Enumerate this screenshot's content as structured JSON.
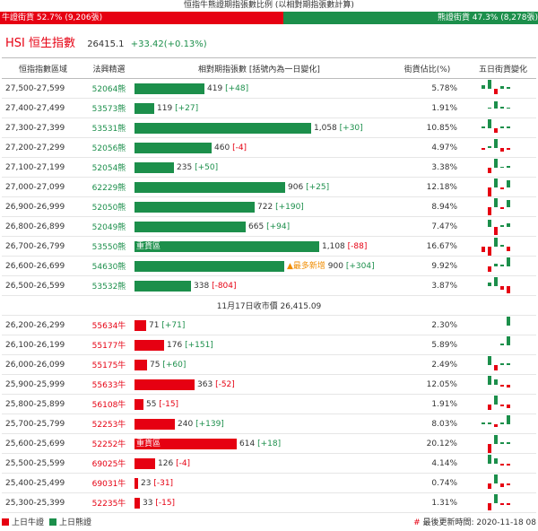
{
  "header": {
    "title": "恒指牛熊證期指張數比例 (以相對期指張數計算)",
    "bull_label": "牛證街貨 52.7% (9,206張)",
    "bull_pct": 52.7,
    "bear_label": "熊證街貨 47.3% (8,278張)",
    "bear_pct": 47.3
  },
  "index": {
    "symbol": "HSI 恒生指數",
    "value": "26415.1",
    "change": "+33.42(+0.13%)"
  },
  "columns": {
    "range": "恒指指數區域",
    "code": "法興精選",
    "bar": "相對期指張數 [括號內為一日變化]",
    "pct": "街貨佔比(%)",
    "spark": "五日街貨變化"
  },
  "bear_rows": [
    {
      "range": "27,500-27,599",
      "code": "52064熊",
      "count": 419,
      "count_text": "419",
      "change": "[+48]",
      "dir": "up",
      "tag": "",
      "note": "",
      "pct": "5.78%",
      "spark": [
        0,
        4,
        10,
        -6,
        3,
        2
      ]
    },
    {
      "range": "27,400-27,499",
      "code": "53573熊",
      "count": 119,
      "count_text": "119",
      "change": "[+27]",
      "dir": "up",
      "tag": "",
      "note": "",
      "pct": "1.91%",
      "spark": [
        0,
        0,
        1,
        8,
        2,
        1
      ]
    },
    {
      "range": "27,300-27,399",
      "code": "53531熊",
      "count": 1058,
      "count_text": "1,058",
      "change": "[+30]",
      "dir": "up",
      "tag": "",
      "note": "",
      "pct": "10.85%",
      "spark": [
        0,
        2,
        10,
        -5,
        2,
        2
      ]
    },
    {
      "range": "27,200-27,299",
      "code": "52056熊",
      "count": 460,
      "count_text": "460",
      "change": "[-4]",
      "dir": "dn",
      "tag": "",
      "note": "",
      "pct": "4.97%",
      "spark": [
        0,
        -2,
        2,
        10,
        -4,
        -2
      ]
    },
    {
      "range": "27,100-27,199",
      "code": "52054熊",
      "count": 235,
      "count_text": "235",
      "change": "[+50]",
      "dir": "up",
      "tag": "",
      "note": "",
      "pct": "3.38%",
      "spark": [
        0,
        0,
        -6,
        10,
        1,
        2
      ]
    },
    {
      "range": "27,000-27,099",
      "code": "62229熊",
      "count": 906,
      "count_text": "906",
      "change": "[+25]",
      "dir": "up",
      "tag": "",
      "note": "",
      "pct": "12.18%",
      "spark": [
        0,
        0,
        -10,
        10,
        -2,
        8
      ]
    },
    {
      "range": "26,900-26,999",
      "code": "52050熊",
      "count": 722,
      "count_text": "722",
      "change": "[+190]",
      "dir": "up",
      "tag": "",
      "note": "",
      "pct": "8.94%",
      "spark": [
        0,
        0,
        -9,
        10,
        -2,
        8
      ]
    },
    {
      "range": "26,800-26,899",
      "code": "52049熊",
      "count": 665,
      "count_text": "665",
      "change": "[+94]",
      "dir": "up",
      "tag": "",
      "note": "",
      "pct": "7.47%",
      "spark": [
        0,
        0,
        8,
        -9,
        2,
        4
      ]
    },
    {
      "range": "26,700-26,799",
      "code": "53550熊",
      "count": 1108,
      "count_text": "1,108",
      "change": "[-88]",
      "dir": "dn",
      "tag": "重貨區",
      "note": "",
      "pct": "16.67%",
      "spark": [
        0,
        -6,
        -10,
        10,
        2,
        -5
      ]
    },
    {
      "range": "26,600-26,699",
      "code": "54630熊",
      "count": 900,
      "count_text": "900",
      "change": "[+304]",
      "dir": "up",
      "tag": "",
      "note": "▲最多新增",
      "pct": "9.92%",
      "spark": [
        0,
        0,
        -6,
        3,
        2,
        10
      ]
    },
    {
      "range": "26,500-26,599",
      "code": "53532熊",
      "count": 338,
      "count_text": "338",
      "change": "[-804]",
      "dir": "dn",
      "tag": "",
      "note": "",
      "pct": "3.87%",
      "spark": [
        0,
        0,
        4,
        10,
        -4,
        -8
      ]
    }
  ],
  "separator": "11月17日收市價 26,415.09",
  "bull_rows": [
    {
      "range": "26,200-26,299",
      "code": "55634牛",
      "count": 71,
      "count_text": "71",
      "change": "[+71]",
      "dir": "up",
      "tag": "",
      "note": "",
      "pct": "2.30%",
      "spark": [
        0,
        0,
        0,
        0,
        0,
        10
      ]
    },
    {
      "range": "26,100-26,199",
      "code": "55177牛",
      "count": 176,
      "count_text": "176",
      "change": "[+151]",
      "dir": "up",
      "tag": "",
      "note": "",
      "pct": "5.89%",
      "spark": [
        0,
        0,
        0,
        0,
        2,
        10
      ]
    },
    {
      "range": "26,000-26,099",
      "code": "55175牛",
      "count": 75,
      "count_text": "75",
      "change": "[+60]",
      "dir": "up",
      "tag": "",
      "note": "",
      "pct": "2.49%",
      "spark": [
        0,
        0,
        10,
        -6,
        2,
        2
      ]
    },
    {
      "range": "25,900-25,999",
      "code": "55633牛",
      "count": 363,
      "count_text": "363",
      "change": "[-52]",
      "dir": "dn",
      "tag": "",
      "note": "",
      "pct": "12.05%",
      "spark": [
        0,
        0,
        10,
        6,
        -2,
        -3
      ]
    },
    {
      "range": "25,800-25,899",
      "code": "56108牛",
      "count": 55,
      "count_text": "55",
      "change": "[-15]",
      "dir": "dn",
      "tag": "",
      "note": "",
      "pct": "1.91%",
      "spark": [
        0,
        0,
        -6,
        10,
        -2,
        -4
      ]
    },
    {
      "range": "25,700-25,799",
      "code": "52253牛",
      "count": 240,
      "count_text": "240",
      "change": "[+139]",
      "dir": "up",
      "tag": "",
      "note": "",
      "pct": "8.03%",
      "spark": [
        0,
        2,
        2,
        -3,
        2,
        10
      ]
    },
    {
      "range": "25,600-25,699",
      "code": "52252牛",
      "count": 614,
      "count_text": "614",
      "change": "[+18]",
      "dir": "up",
      "tag": "重貨區",
      "note": "",
      "pct": "20.12%",
      "spark": [
        0,
        0,
        -10,
        10,
        2,
        2
      ]
    },
    {
      "range": "25,500-25,599",
      "code": "69025牛",
      "count": 126,
      "count_text": "126",
      "change": "[-4]",
      "dir": "dn",
      "tag": "",
      "note": "",
      "pct": "4.14%",
      "spark": [
        0,
        0,
        10,
        6,
        -2,
        -2
      ]
    },
    {
      "range": "25,400-25,499",
      "code": "69031牛",
      "count": 23,
      "count_text": "23",
      "change": "[-31]",
      "dir": "dn",
      "tag": "",
      "note": "",
      "pct": "0.74%",
      "spark": [
        0,
        0,
        -6,
        10,
        -4,
        -2
      ]
    },
    {
      "range": "25,300-25,399",
      "code": "52235牛",
      "count": 33,
      "count_text": "33",
      "change": "[-15]",
      "dir": "dn",
      "tag": "",
      "note": "",
      "pct": "1.31%",
      "spark": [
        0,
        0,
        -8,
        10,
        -2,
        -2
      ]
    }
  ],
  "footer": {
    "legend_bull": "上日牛證",
    "legend_bear": "上日熊證",
    "updated": "最後更新時間: 2020-11-18 08"
  },
  "colors": {
    "bull": "#e60012",
    "bear": "#1c8f4b",
    "note": "#f08c00"
  },
  "icons": {
    "new_high": "triangle-up-icon",
    "update_hash": "hash-icon"
  }
}
